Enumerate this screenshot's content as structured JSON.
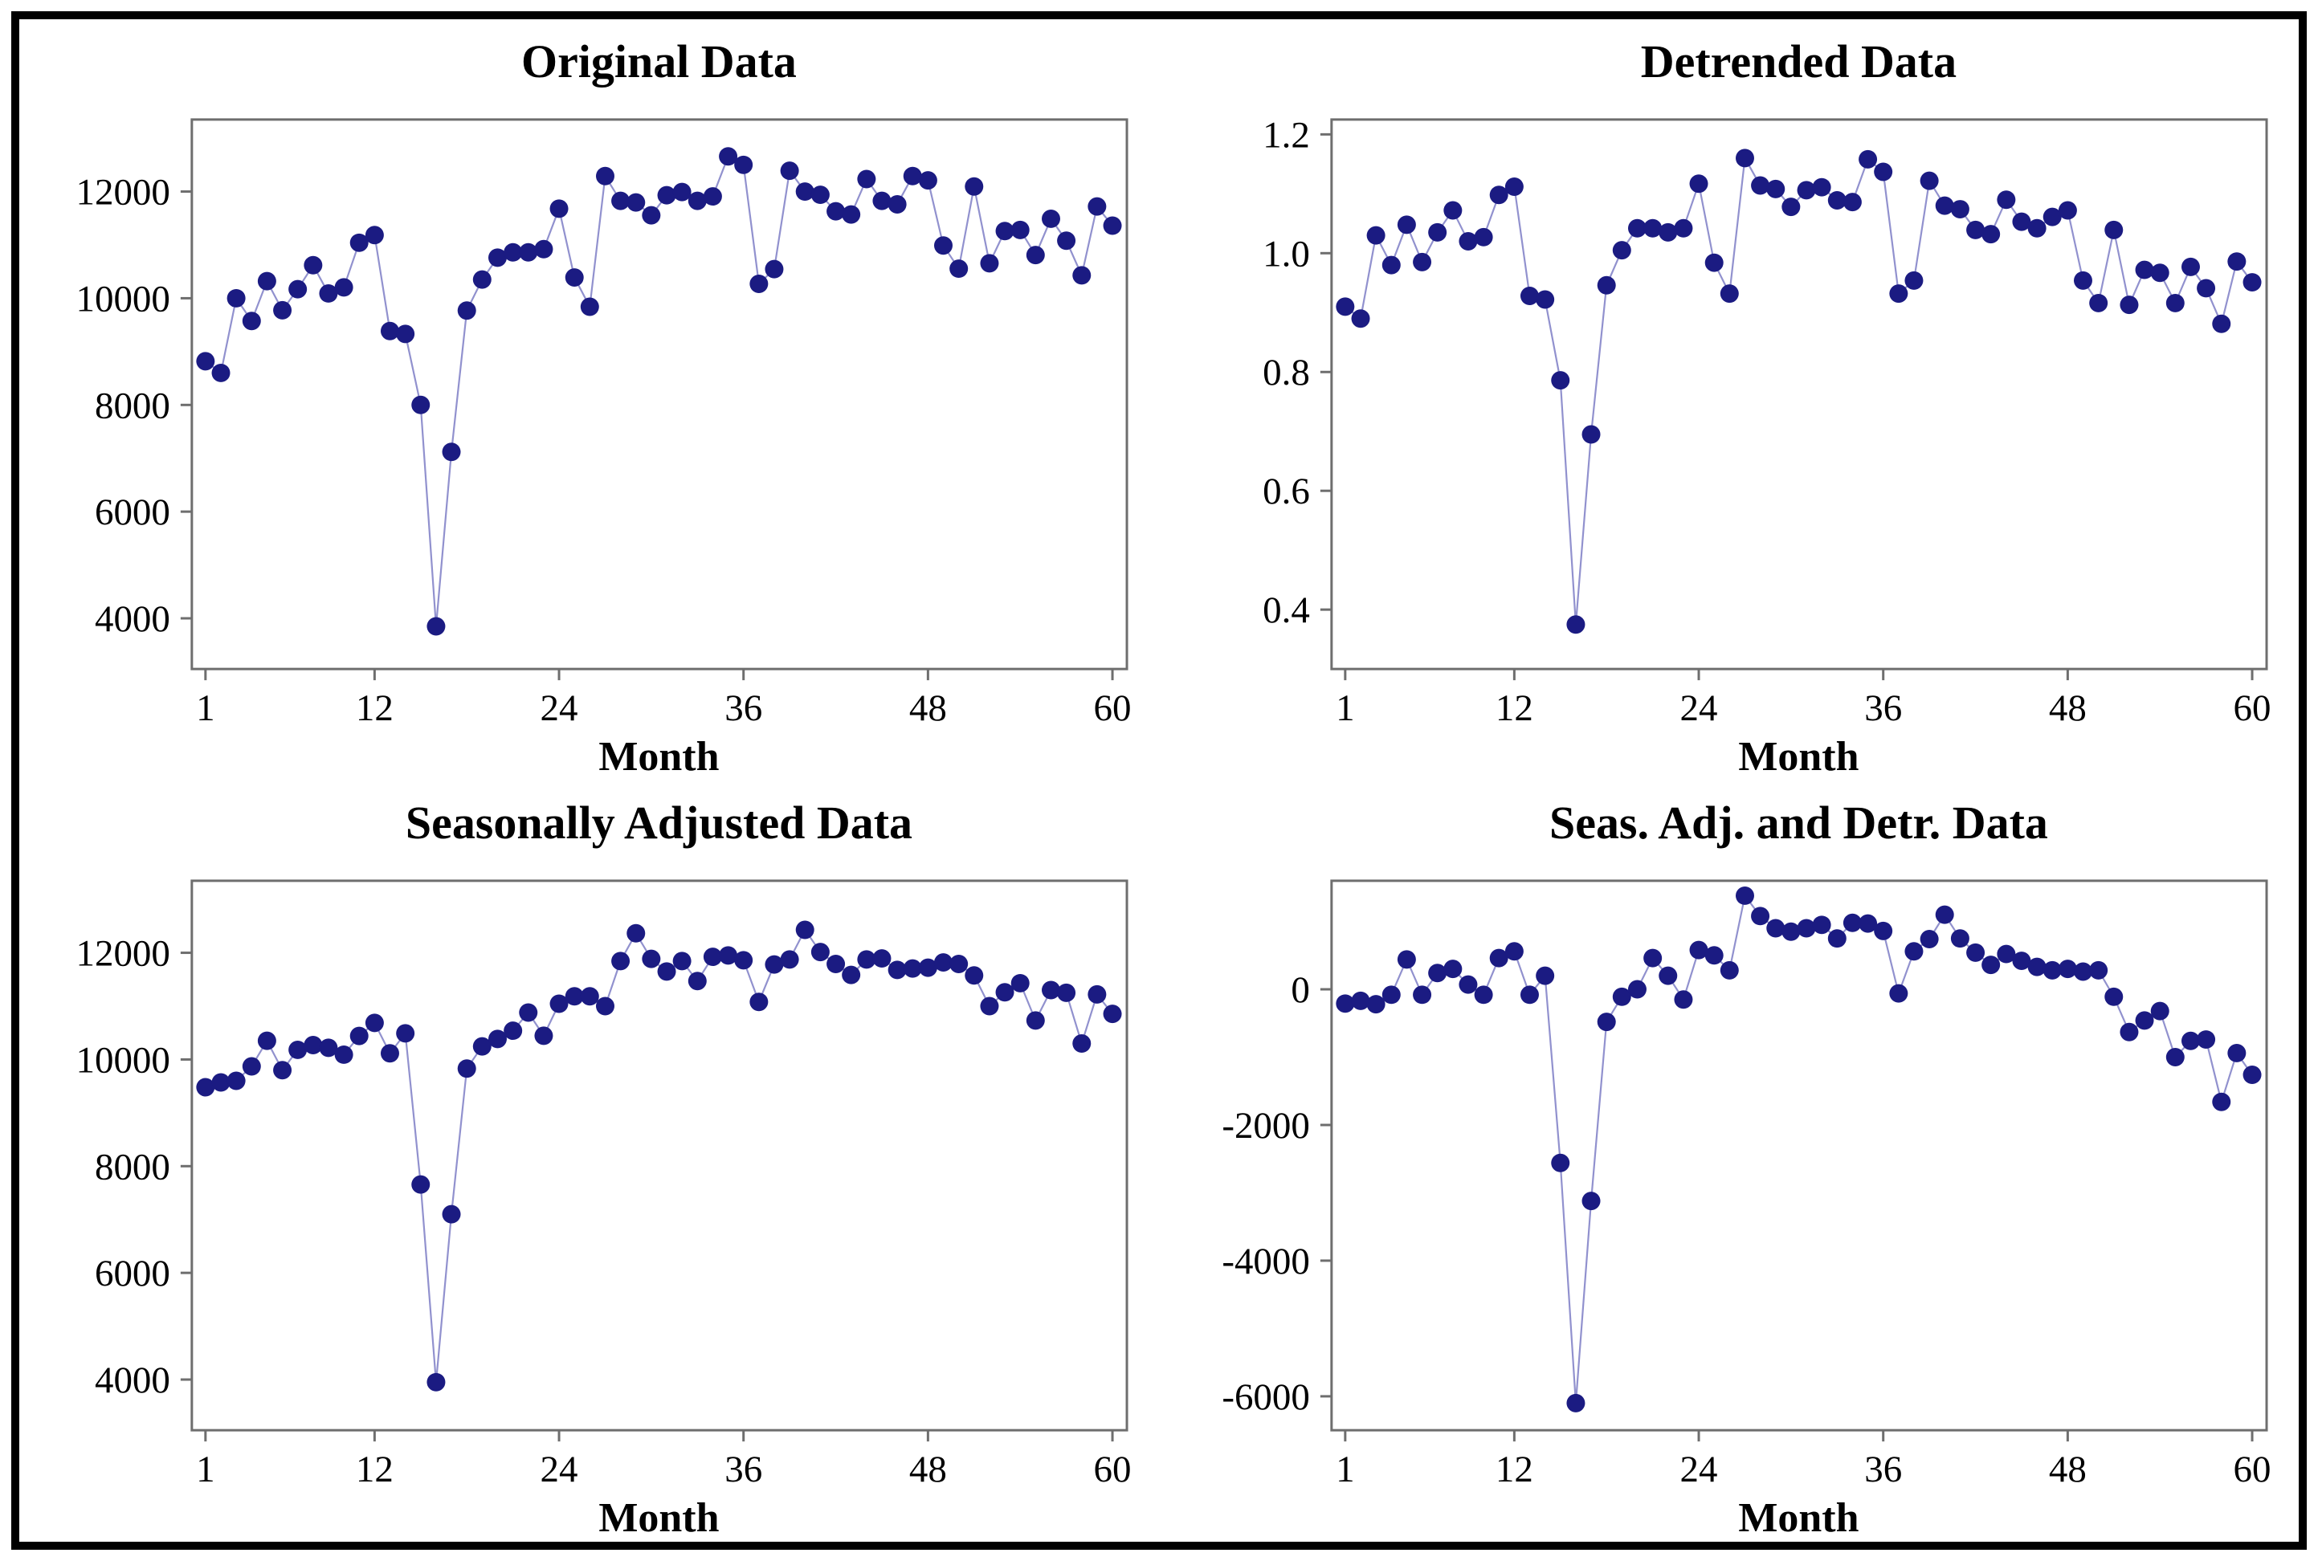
{
  "figure": {
    "layout": "2x2 grid of scatter-line panels inside a black frame",
    "grid": "off",
    "legend": "none"
  },
  "style": {
    "point_color": "#1b1b82",
    "line_color": "#9191ce",
    "axis_color": "#6e6e6e",
    "text_color": "#000000",
    "frame_color": "#000000",
    "background": "#ffffff"
  },
  "months": [
    1,
    2,
    3,
    4,
    5,
    6,
    7,
    8,
    9,
    10,
    11,
    12,
    13,
    14,
    15,
    16,
    17,
    18,
    19,
    20,
    21,
    22,
    23,
    24,
    25,
    26,
    27,
    28,
    29,
    30,
    31,
    32,
    33,
    34,
    35,
    36,
    37,
    38,
    39,
    40,
    41,
    42,
    43,
    44,
    45,
    46,
    47,
    48,
    49,
    50,
    51,
    52,
    53,
    54,
    55,
    56,
    57,
    58,
    59,
    60
  ],
  "chart_data": [
    {
      "type": "line",
      "title": "Original Data",
      "xlabel": "Month",
      "x_ticks": [
        1,
        12,
        24,
        36,
        48,
        60
      ],
      "y_ticks": [
        "4000",
        "6000",
        "8000",
        "10000",
        "12000"
      ],
      "xlim": [
        1,
        60
      ],
      "ylim": [
        3050,
        13350
      ],
      "values": [
        8820,
        8600,
        10000,
        9575,
        10320,
        9775,
        10170,
        10620,
        10090,
        10205,
        11040,
        11185,
        9385,
        9330,
        8000,
        3850,
        7120,
        9770,
        10350,
        10760,
        10860,
        10860,
        10920,
        11680,
        10390,
        9840,
        12290,
        11825,
        11795,
        11555,
        11930,
        11990,
        11825,
        11910,
        12660,
        12500,
        10270,
        10545,
        12390,
        12000,
        11940,
        11630,
        11570,
        12235,
        11825,
        11760,
        12290,
        12210,
        10990,
        10555,
        12095,
        10655,
        11260,
        11280,
        10810,
        11490,
        11080,
        10430,
        11720,
        11360
      ]
    },
    {
      "type": "line",
      "title": "Detrended Data",
      "xlabel": "Month",
      "x_ticks": [
        1,
        12,
        24,
        36,
        48,
        60
      ],
      "y_ticks": [
        "0.4",
        "0.6",
        "0.8",
        "1.0",
        "1.2"
      ],
      "xlim": [
        1,
        60
      ],
      "ylim": [
        0.3,
        1.225
      ],
      "values": [
        0.91,
        0.89,
        1.03,
        0.98,
        1.048,
        0.985,
        1.035,
        1.072,
        1.02,
        1.027,
        1.098,
        1.112,
        0.928,
        0.922,
        0.786,
        0.375,
        0.695,
        0.946,
        1.005,
        1.042,
        1.042,
        1.035,
        1.042,
        1.117,
        0.984,
        0.932,
        1.16,
        1.114,
        1.108,
        1.078,
        1.106,
        1.111,
        1.089,
        1.086,
        1.158,
        1.137,
        0.932,
        0.954,
        1.122,
        1.08,
        1.074,
        1.039,
        1.032,
        1.09,
        1.053,
        1.042,
        1.061,
        1.072,
        0.954,
        0.916,
        1.039,
        0.913,
        0.972,
        0.967,
        0.916,
        0.977,
        0.941,
        0.881,
        0.986,
        0.951
      ]
    },
    {
      "type": "line",
      "title": "Seasonally Adjusted Data",
      "xlabel": "Month",
      "x_ticks": [
        1,
        12,
        24,
        36,
        48,
        60
      ],
      "y_ticks": [
        "4000",
        "6000",
        "8000",
        "10000",
        "12000"
      ],
      "xlim": [
        1,
        60
      ],
      "ylim": [
        3050,
        13350
      ],
      "values": [
        9480,
        9570,
        9600,
        9870,
        10350,
        9800,
        10180,
        10270,
        10220,
        10090,
        10440,
        10685,
        10115,
        10490,
        7655,
        3950,
        7100,
        9830,
        10245,
        10385,
        10540,
        10880,
        10445,
        11045,
        11185,
        11185,
        11000,
        11845,
        12365,
        11885,
        11650,
        11845,
        11470,
        11925,
        11950,
        11860,
        11080,
        11780,
        11875,
        12430,
        12015,
        11790,
        11585,
        11875,
        11895,
        11680,
        11705,
        11720,
        11820,
        11790,
        11575,
        11000,
        11260,
        11430,
        10730,
        11300,
        11250,
        10300,
        11220,
        10855
      ]
    },
    {
      "type": "line",
      "title": "Seas. Adj. and Detr. Data",
      "xlabel": "Month",
      "x_ticks": [
        1,
        12,
        24,
        36,
        48,
        60
      ],
      "y_ticks": [
        "-6000",
        "-4000",
        "-2000",
        "0"
      ],
      "xlim": [
        1,
        60
      ],
      "ylim": [
        -6500,
        1600
      ],
      "values": [
        -210,
        -170,
        -220,
        -80,
        440,
        -80,
        240,
        300,
        70,
        -80,
        460,
        560,
        -80,
        200,
        -2560,
        -6100,
        -3120,
        -480,
        -110,
        0,
        460,
        200,
        -150,
        580,
        500,
        280,
        1380,
        1080,
        900,
        850,
        900,
        950,
        750,
        980,
        970,
        860,
        -60,
        560,
        740,
        1100,
        750,
        540,
        360,
        520,
        420,
        330,
        280,
        300,
        260,
        280,
        -110,
        -630,
        -460,
        -320,
        -1000,
        -760,
        -740,
        -1660,
        -940,
        -1260
      ]
    }
  ]
}
